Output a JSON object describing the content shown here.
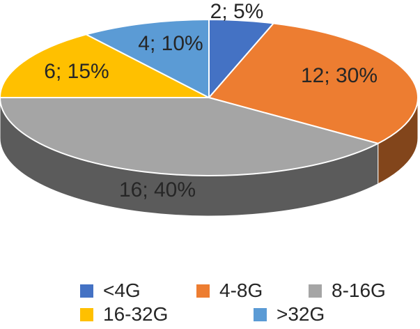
{
  "chart_data": {
    "type": "pie",
    "style": "3d",
    "categories": [
      "<4G",
      "4-8G",
      "8-16G",
      "16-32G",
      ">32G"
    ],
    "values": [
      2,
      12,
      16,
      6,
      4
    ],
    "percents": [
      "5%",
      "30%",
      "40%",
      "15%",
      "10%"
    ],
    "data_labels": [
      "2; 5%",
      "12; 30%",
      "16; 40%",
      "6; 15%",
      "4; 10%"
    ],
    "colors": [
      "#4472C4",
      "#ED7D31",
      "#A5A5A5",
      "#FFC000",
      "#5B9BD5"
    ],
    "legend_position": "bottom",
    "title": ""
  }
}
